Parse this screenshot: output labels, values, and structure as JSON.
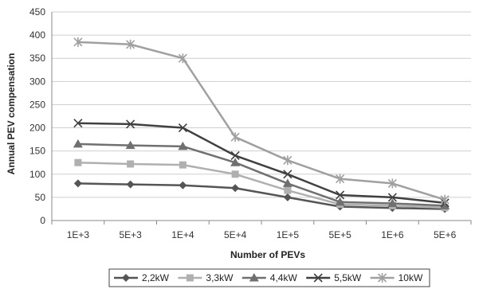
{
  "chart_data": {
    "type": "line",
    "title": "",
    "xlabel": "Number of PEVs",
    "ylabel": "Annual PEV compensation",
    "categories": [
      "1E+3",
      "5E+3",
      "1E+4",
      "5E+4",
      "1E+5",
      "5E+5",
      "1E+6",
      "5E+6"
    ],
    "ylim": [
      0,
      450
    ],
    "yticks": [
      0,
      50,
      100,
      150,
      200,
      250,
      300,
      350,
      400,
      450
    ],
    "grid": true,
    "legend": "bottom",
    "series": [
      {
        "name": "2,2kW",
        "marker": "diamond",
        "color": "#555555",
        "values": [
          80,
          78,
          76,
          70,
          50,
          30,
          27,
          25
        ]
      },
      {
        "name": "3,3kW",
        "marker": "square",
        "color": "#b0b0b0",
        "values": [
          125,
          122,
          120,
          100,
          65,
          35,
          32,
          28
        ]
      },
      {
        "name": "4,4kW",
        "marker": "triangle",
        "color": "#707070",
        "values": [
          165,
          162,
          160,
          125,
          80,
          40,
          37,
          32
        ]
      },
      {
        "name": "5,5kW",
        "marker": "x",
        "color": "#404040",
        "values": [
          210,
          208,
          200,
          140,
          100,
          55,
          50,
          38
        ]
      },
      {
        "name": "10kW",
        "marker": "star",
        "color": "#a0a0a0",
        "values": [
          385,
          380,
          350,
          180,
          130,
          90,
          80,
          45
        ]
      }
    ]
  }
}
